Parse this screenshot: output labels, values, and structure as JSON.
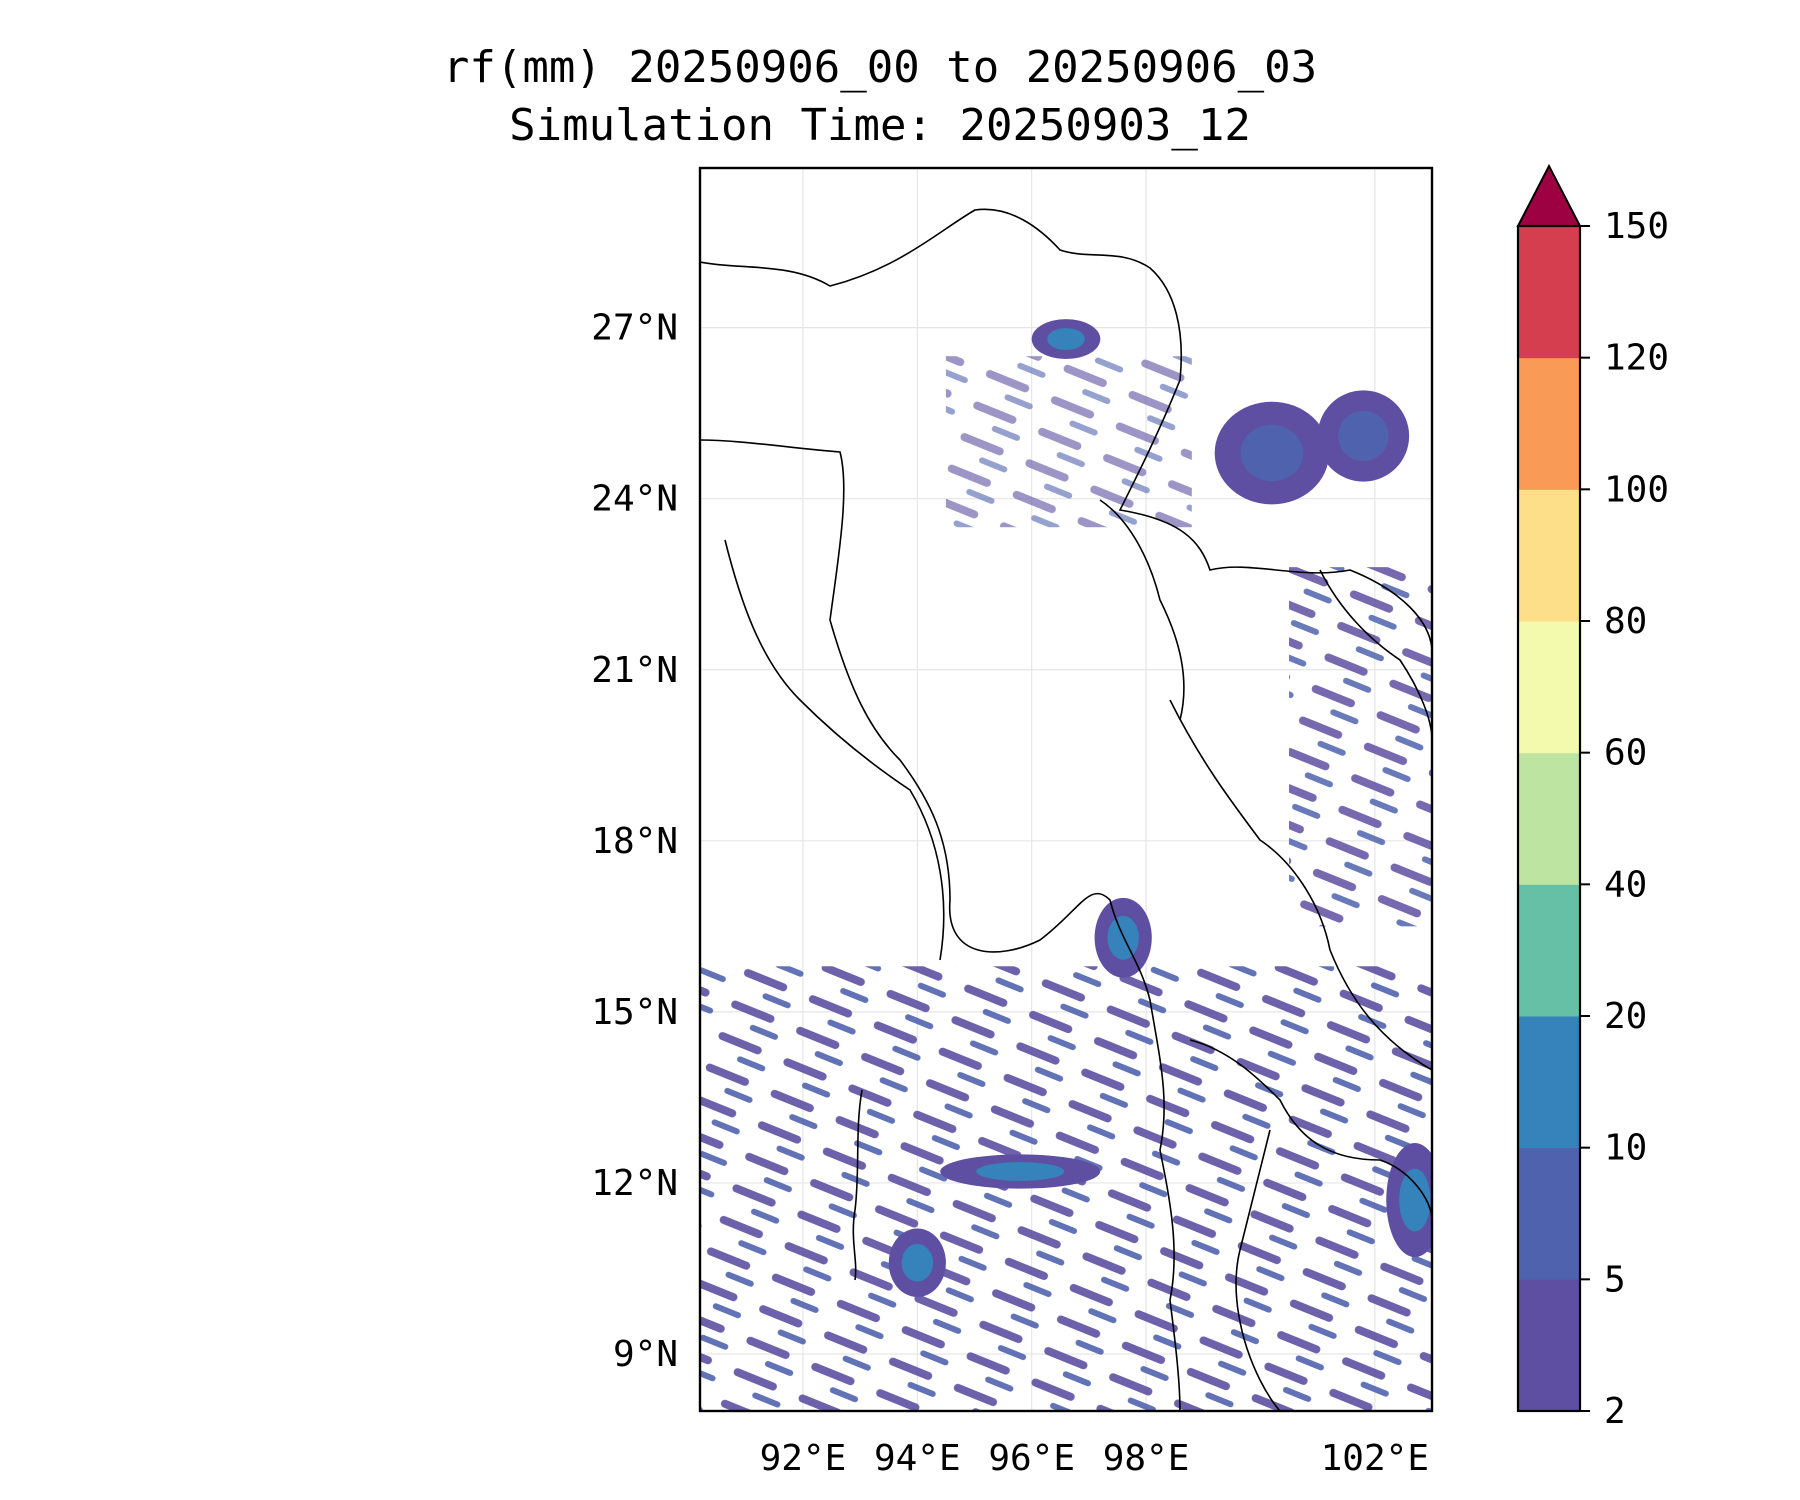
{
  "title": {
    "line1": "rf(mm) 20250906_00 to 20250906_03",
    "line2": "Simulation Time: 20250903_12"
  },
  "map": {
    "lon_range": [
      90.2,
      103.0
    ],
    "lat_range": [
      8.0,
      29.8
    ],
    "lat_ticks": [
      {
        "value": 27,
        "label": "27°N"
      },
      {
        "value": 24,
        "label": "24°N"
      },
      {
        "value": 21,
        "label": "21°N"
      },
      {
        "value": 18,
        "label": "18°N"
      },
      {
        "value": 15,
        "label": "15°N"
      },
      {
        "value": 12,
        "label": "12°N"
      },
      {
        "value": 9,
        "label": "9°N"
      }
    ],
    "lon_ticks": [
      {
        "value": 92,
        "label": "92°E"
      },
      {
        "value": 94,
        "label": "94°E"
      },
      {
        "value": 96,
        "label": "96°E"
      },
      {
        "value": 98,
        "label": "98°E"
      },
      {
        "value": 102,
        "label": "102°E"
      }
    ],
    "grid": true
  },
  "colorbar": {
    "levels": [
      "2",
      "5",
      "10",
      "20",
      "40",
      "60",
      "80",
      "100",
      "120",
      "150"
    ],
    "colors": [
      "#5e4fa2",
      "#4f62ae",
      "#3682ba",
      "#65c0a6",
      "#bde4a0",
      "#f3faad",
      "#fcdf88",
      "#f99b57",
      "#d53e4f"
    ],
    "extend_color": "#9e0142",
    "extend": "max"
  },
  "rain_regions": [
    {
      "lon": 97.6,
      "lat": 16.3,
      "rx": 0.5,
      "ry": 0.7,
      "level": 2
    },
    {
      "lon": 100.2,
      "lat": 24.8,
      "rx": 1.0,
      "ry": 0.9,
      "level": 1
    },
    {
      "lon": 101.8,
      "lat": 25.1,
      "rx": 0.8,
      "ry": 0.8,
      "level": 1
    },
    {
      "lon": 96.6,
      "lat": 26.8,
      "rx": 0.6,
      "ry": 0.35,
      "level": 2
    },
    {
      "lon": 102.7,
      "lat": 11.7,
      "rx": 0.5,
      "ry": 1.0,
      "level": 2
    },
    {
      "lon": 95.8,
      "lat": 12.2,
      "rx": 1.4,
      "ry": 0.3,
      "level": 2
    },
    {
      "lon": 94.0,
      "lat": 10.6,
      "rx": 0.5,
      "ry": 0.6,
      "level": 2
    }
  ]
}
